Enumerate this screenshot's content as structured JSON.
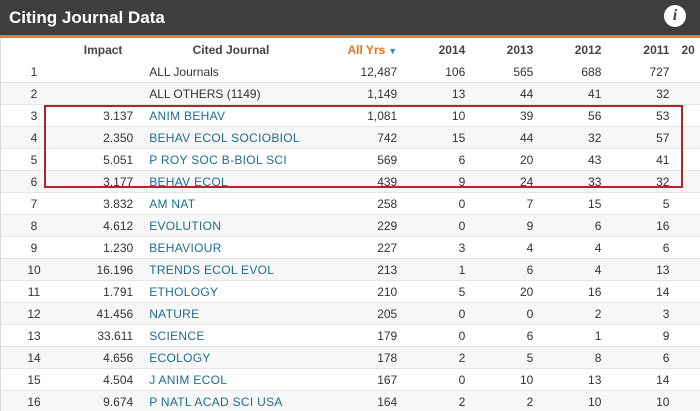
{
  "panel": {
    "title": "Citing Journal Data",
    "info_icon": "i"
  },
  "table": {
    "headers": {
      "rank": "",
      "impact": "Impact",
      "journal": "Cited Journal",
      "all_years": "All Yrs",
      "y2014": "2014",
      "y2013": "2013",
      "y2012": "2012",
      "y2011": "2011",
      "y_next": "20"
    },
    "rows": [
      {
        "rank": "1",
        "impact": "",
        "journal": "ALL Journals",
        "all": "12,487",
        "y2014": "106",
        "y2013": "565",
        "y2012": "688",
        "y2011": "727",
        "link": false
      },
      {
        "rank": "2",
        "impact": "",
        "journal": "ALL OTHERS (1149)",
        "all": "1,149",
        "y2014": "13",
        "y2013": "44",
        "y2012": "41",
        "y2011": "32",
        "link": false
      },
      {
        "rank": "3",
        "impact": "3.137",
        "journal": "ANIM BEHAV",
        "all": "1,081",
        "y2014": "10",
        "y2013": "39",
        "y2012": "56",
        "y2011": "53",
        "link": true
      },
      {
        "rank": "4",
        "impact": "2.350",
        "journal": "BEHAV ECOL SOCIOBIOL",
        "all": "742",
        "y2014": "15",
        "y2013": "44",
        "y2012": "32",
        "y2011": "57",
        "link": true
      },
      {
        "rank": "5",
        "impact": "5.051",
        "journal": "P ROY SOC B-BIOL SCI",
        "all": "569",
        "y2014": "6",
        "y2013": "20",
        "y2012": "43",
        "y2011": "41",
        "link": true
      },
      {
        "rank": "6",
        "impact": "3.177",
        "journal": "BEHAV ECOL",
        "all": "439",
        "y2014": "9",
        "y2013": "24",
        "y2012": "33",
        "y2011": "32",
        "link": true
      },
      {
        "rank": "7",
        "impact": "3.832",
        "journal": "AM NAT",
        "all": "258",
        "y2014": "0",
        "y2013": "7",
        "y2012": "15",
        "y2011": "5",
        "link": true
      },
      {
        "rank": "8",
        "impact": "4.612",
        "journal": "EVOLUTION",
        "all": "229",
        "y2014": "0",
        "y2013": "9",
        "y2012": "6",
        "y2011": "16",
        "link": true
      },
      {
        "rank": "9",
        "impact": "1.230",
        "journal": "BEHAVIOUR",
        "all": "227",
        "y2014": "3",
        "y2013": "4",
        "y2012": "4",
        "y2011": "6",
        "link": true
      },
      {
        "rank": "10",
        "impact": "16.196",
        "journal": "TRENDS ECOL EVOL",
        "all": "213",
        "y2014": "1",
        "y2013": "6",
        "y2012": "4",
        "y2011": "13",
        "link": true
      },
      {
        "rank": "11",
        "impact": "1.791",
        "journal": "ETHOLOGY",
        "all": "210",
        "y2014": "5",
        "y2013": "20",
        "y2012": "16",
        "y2011": "14",
        "link": true
      },
      {
        "rank": "12",
        "impact": "41.456",
        "journal": "NATURE",
        "all": "205",
        "y2014": "0",
        "y2013": "0",
        "y2012": "2",
        "y2011": "3",
        "link": true
      },
      {
        "rank": "13",
        "impact": "33.611",
        "journal": "SCIENCE",
        "all": "179",
        "y2014": "0",
        "y2013": "6",
        "y2012": "1",
        "y2011": "9",
        "link": true
      },
      {
        "rank": "14",
        "impact": "4.656",
        "journal": "ECOLOGY",
        "all": "178",
        "y2014": "2",
        "y2013": "5",
        "y2012": "8",
        "y2011": "6",
        "link": true
      },
      {
        "rank": "15",
        "impact": "4.504",
        "journal": "J ANIM ECOL",
        "all": "167",
        "y2014": "0",
        "y2013": "10",
        "y2012": "13",
        "y2011": "14",
        "link": true
      },
      {
        "rank": "16",
        "impact": "9.674",
        "journal": "P NATL ACAD SCI USA",
        "all": "164",
        "y2014": "2",
        "y2013": "2",
        "y2012": "10",
        "y2011": "10",
        "link": true
      }
    ]
  },
  "colors": {
    "header_bg": "#3e3e3e",
    "accent_orange": "#ef7b22",
    "link_blue": "#1f6c8f",
    "highlight_red": "#b0262a"
  }
}
